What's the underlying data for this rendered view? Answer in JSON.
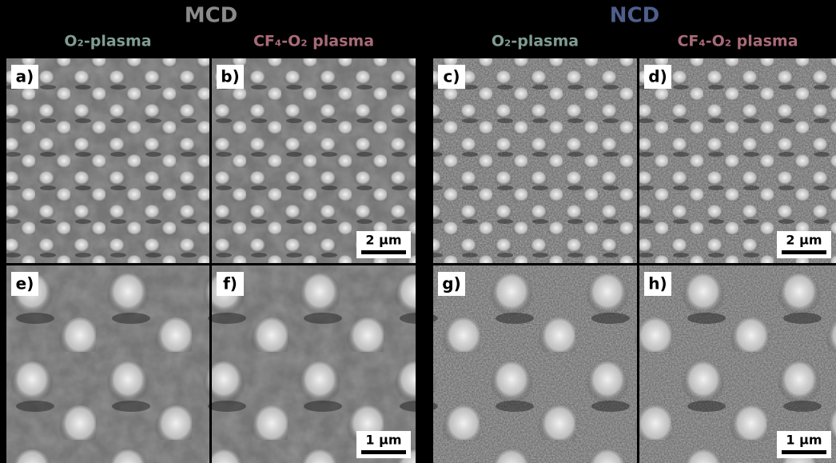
{
  "groups": [
    {
      "title": "MCD",
      "columns": [
        "O₂-plasma",
        "CF₄-O₂ plasma"
      ]
    },
    {
      "title": "NCD",
      "columns": [
        "O₂-plasma",
        "CF₄-O₂ plasma"
      ]
    }
  ],
  "panels": [
    {
      "label": "a)"
    },
    {
      "label": "b)",
      "scale_bar": "2 µm"
    },
    {
      "label": "c)"
    },
    {
      "label": "d)",
      "scale_bar": "2 µm"
    },
    {
      "label": "e)"
    },
    {
      "label": "f)",
      "scale_bar": "1 µm"
    },
    {
      "label": "g)"
    },
    {
      "label": "h)",
      "scale_bar": "1 µm"
    }
  ]
}
